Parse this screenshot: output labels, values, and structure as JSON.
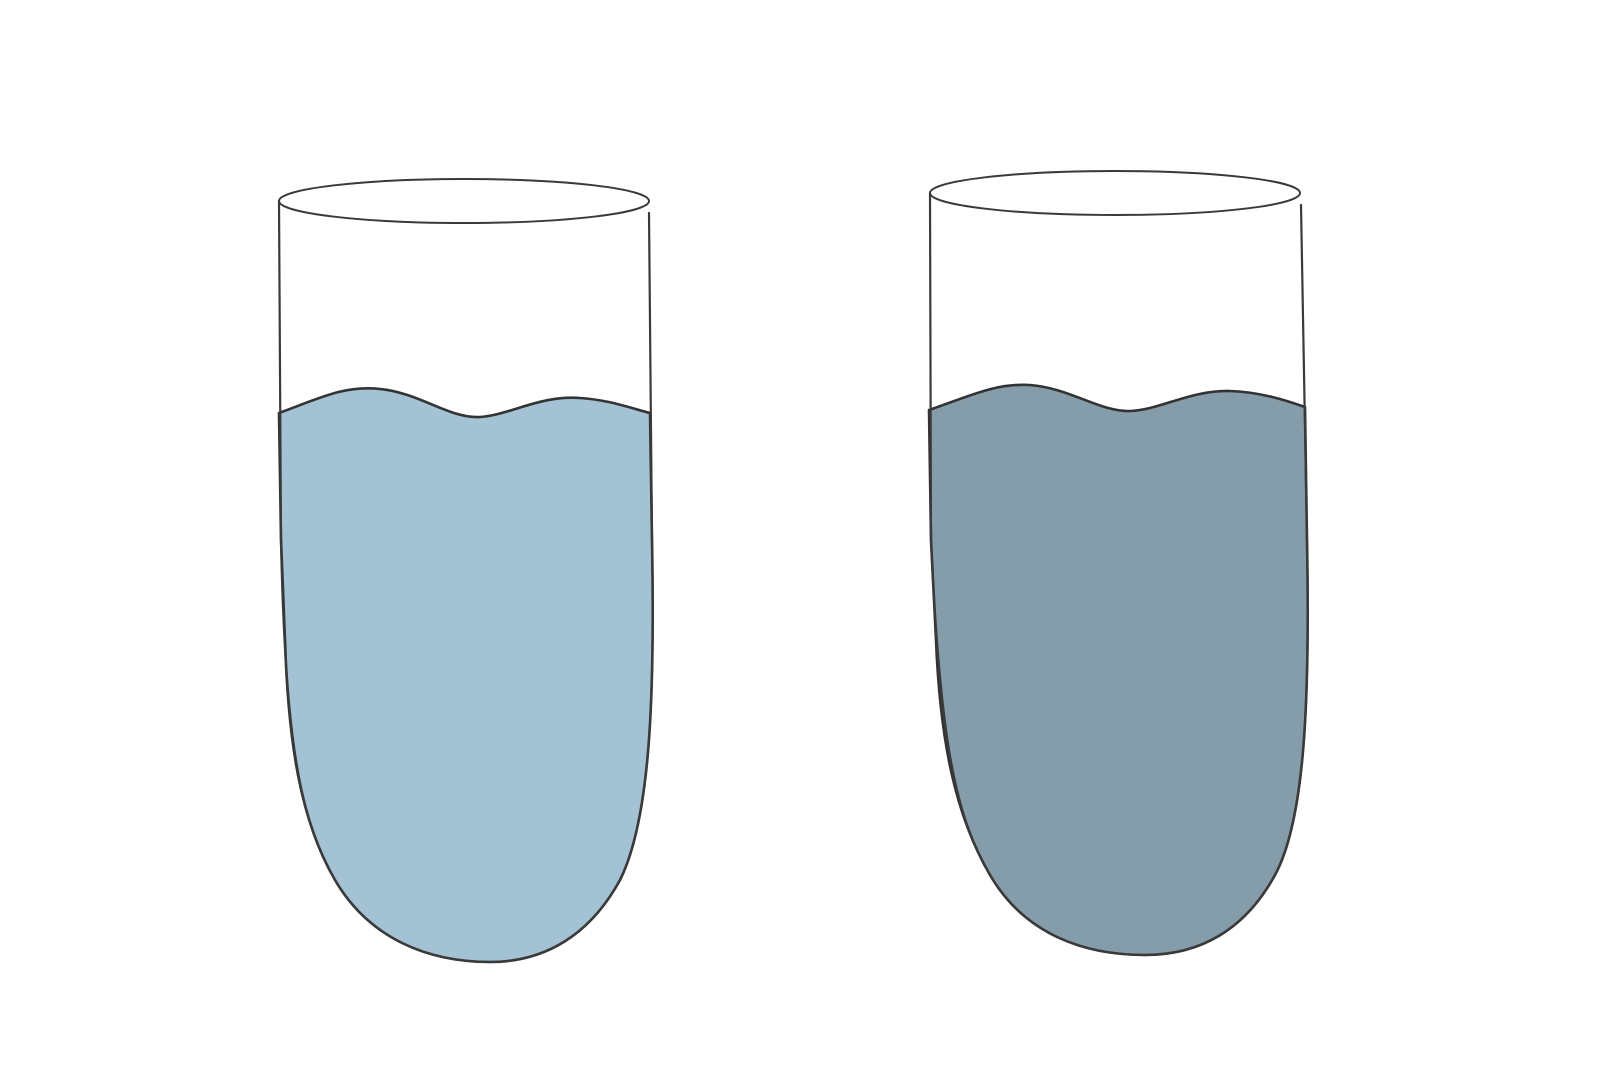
{
  "tubes": [
    {
      "id": "left",
      "liquid_color": "#a3c2d3",
      "fill_level": 0.72
    },
    {
      "id": "right",
      "liquid_color": "#859dab",
      "fill_level": 0.72
    }
  ],
  "colors": {
    "background": "#ffffff",
    "outline": "#3a3a3a"
  }
}
